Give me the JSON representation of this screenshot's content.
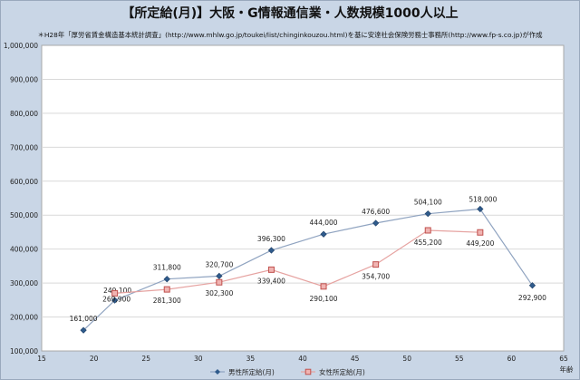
{
  "title": "【所定給(月)】大阪・G情報通信業・人数規模1000人以上",
  "subtitle": "＊H28年「厚労省賃金構造基本統計調査」(http://www.mhlw.go.jp/toukei/list/chinginkouzou.html)を基に安達社会保険労務士事務所(http://www.fp-s.co.jp)が作成",
  "chart_data": {
    "type": "line",
    "xlabel": "年齢",
    "ylabel": "",
    "xlim": [
      15,
      65
    ],
    "ylim": [
      100000,
      1000000
    ],
    "xticks": [
      15,
      20,
      25,
      30,
      35,
      40,
      45,
      50,
      55,
      60,
      65
    ],
    "yticks": [
      100000,
      200000,
      300000,
      400000,
      500000,
      600000,
      700000,
      800000,
      900000,
      1000000
    ],
    "xtick_labels": [
      "15",
      "20",
      "25",
      "30",
      "35",
      "40",
      "45",
      "50",
      "55",
      "60",
      "65"
    ],
    "ytick_labels": [
      "100,000",
      "200,000",
      "300,000",
      "400,000",
      "500,000",
      "600,000",
      "700,000",
      "800,000",
      "900,000",
      "1,000,000"
    ],
    "grid": "horizontal",
    "legend": "bottom",
    "series": [
      {
        "name": "男性所定給(月)",
        "color": "#2f5b8c",
        "marker": "diamond",
        "x": [
          19,
          22,
          27,
          32,
          37,
          42,
          47,
          52,
          57,
          62
        ],
        "y": [
          161000,
          249100,
          311800,
          320700,
          396300,
          444000,
          476600,
          504100,
          518000,
          292900
        ],
        "labels": [
          "161,000",
          "249,100",
          "311,800",
          "320,700",
          "396,300",
          "444,000",
          "476,600",
          "504,100",
          "518,000",
          "292,900"
        ]
      },
      {
        "name": "女性所定給(月)",
        "color": "#c0504d",
        "marker": "square",
        "x": [
          22,
          27,
          32,
          37,
          42,
          47,
          52,
          57
        ],
        "y": [
          269900,
          281300,
          302300,
          339400,
          290100,
          354700,
          455200,
          449200
        ],
        "labels": [
          "269,900",
          "281,300",
          "302,300",
          "339,400",
          "290,100",
          "354,700",
          "455,200",
          "449,200"
        ]
      }
    ]
  }
}
